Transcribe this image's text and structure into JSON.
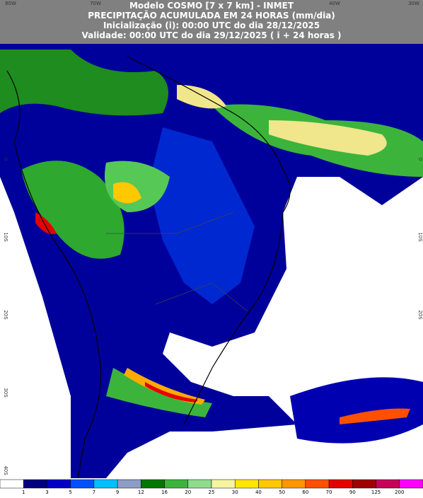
{
  "header": {
    "lines": [
      "Modelo COSMO [7 x 7 km] - INMET",
      "PRECIPITAÇÃO ACUMULADA EM 24 HORAS (mm/dia)",
      "Inicialização (i): 00:00 UTC do dia 28/12/2025",
      "Validade: 00:00 UTC do dia 29/12/2025 ( i + 24 horas )"
    ]
  },
  "longitudes": [
    "80W",
    "70W",
    "40W",
    "30W"
  ],
  "latitudes": [
    "0",
    "10S",
    "20S",
    "30S",
    "40S"
  ],
  "legend": {
    "labels": [
      "1",
      "3",
      "5",
      "7",
      "9",
      "12",
      "16",
      "20",
      "25",
      "30",
      "40",
      "50",
      "60",
      "70",
      "90",
      "125",
      "200"
    ]
  }
}
